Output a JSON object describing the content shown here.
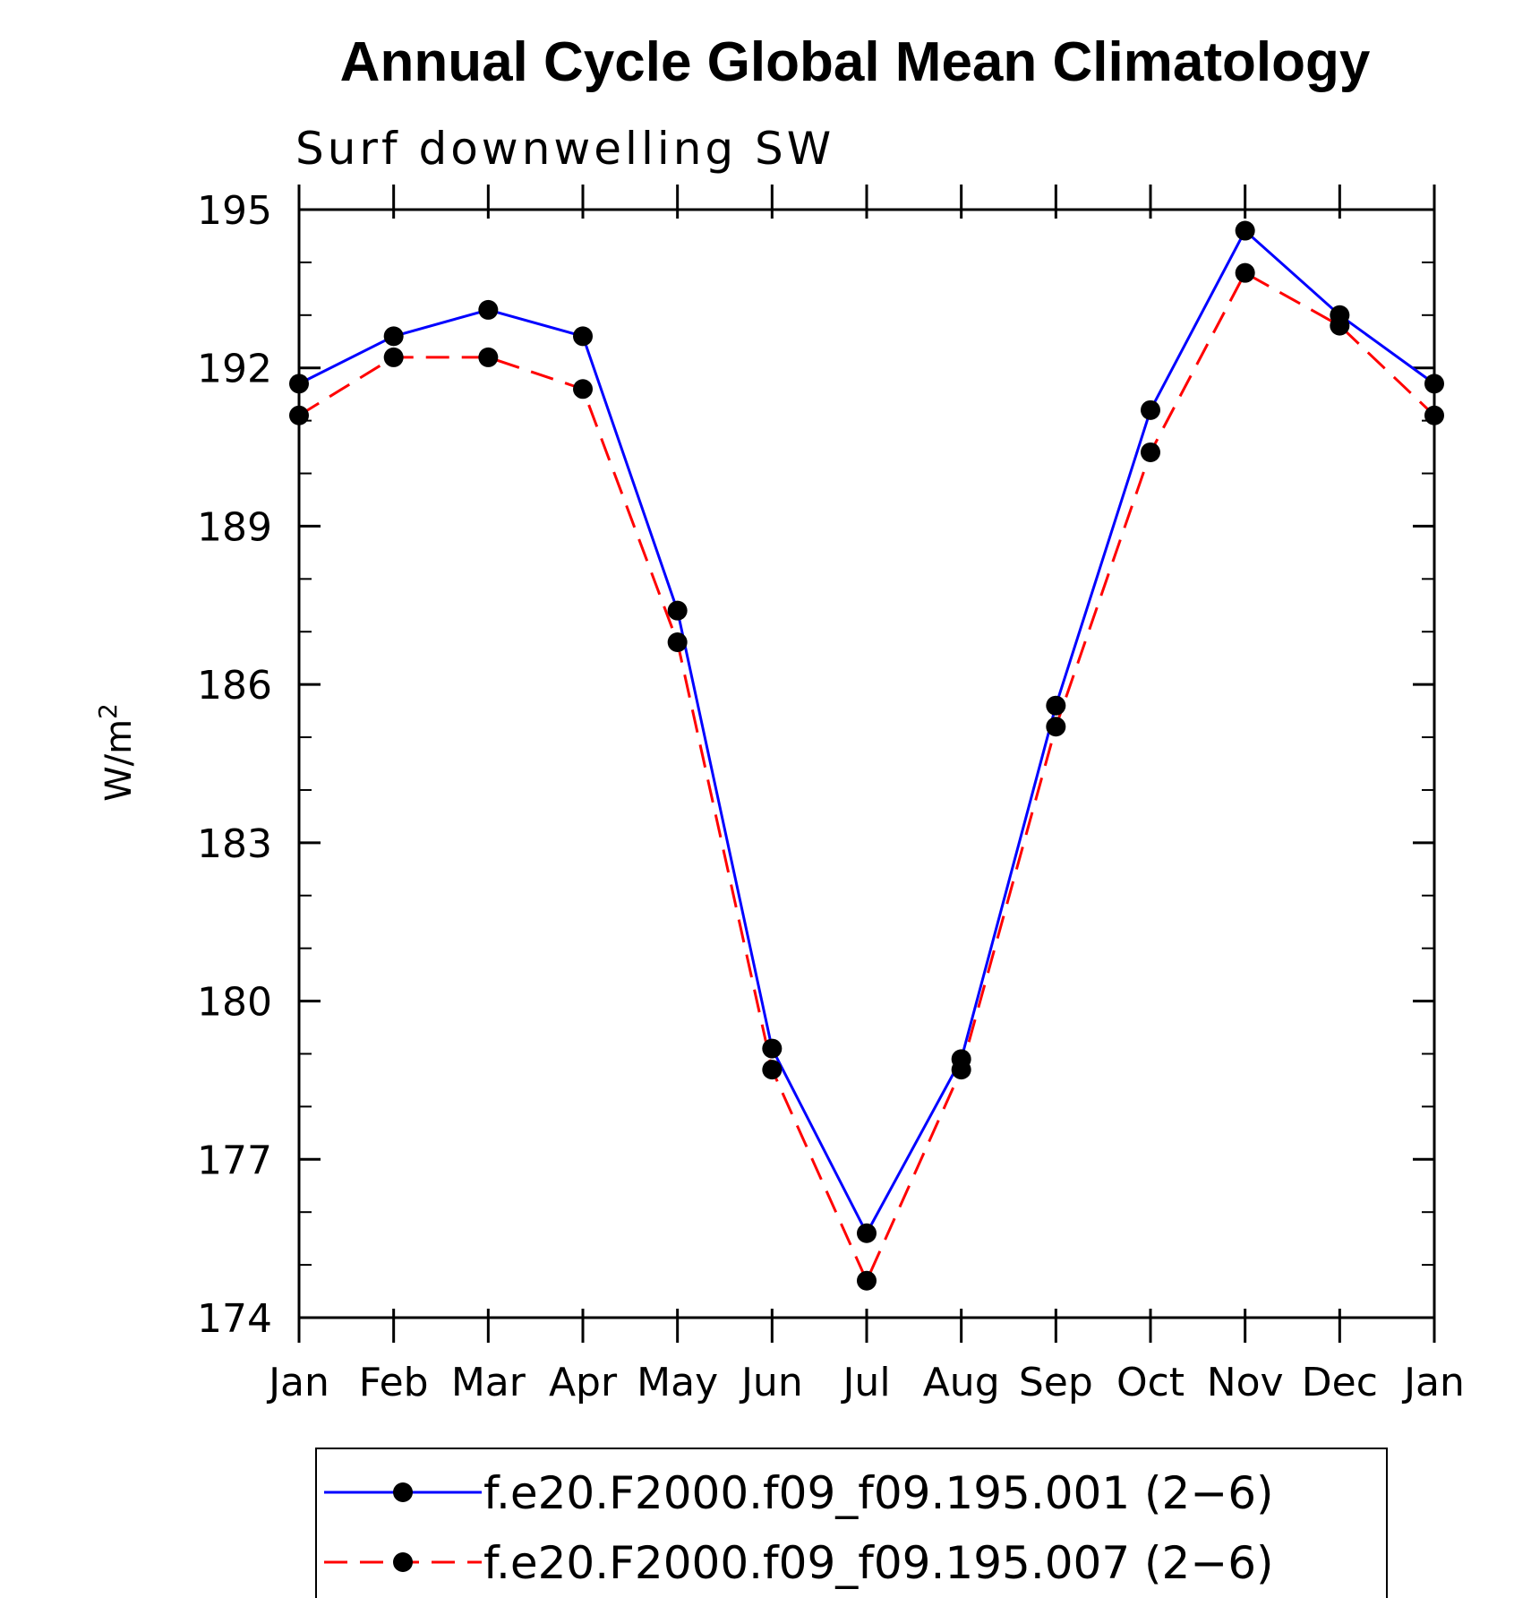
{
  "chart_data": {
    "type": "line",
    "title": "Annual Cycle Global Mean Climatology",
    "subtitle": "Surf downwelling SW",
    "ylabel": "W/m",
    "ylabel_superscript": "2",
    "ylim": [
      174,
      195
    ],
    "yticks": [
      "195",
      "192",
      "189",
      "186",
      "183",
      "180",
      "177",
      "174"
    ],
    "categories": [
      "Jan",
      "Feb",
      "Mar",
      "Apr",
      "May",
      "Jun",
      "Jul",
      "Aug",
      "Sep",
      "Oct",
      "Nov",
      "Dec",
      "Jan"
    ],
    "series": [
      {
        "name": "f.e20.F2000.f09_f09.195.001 (2−6)",
        "color": "#0000ff",
        "dash": "solid",
        "values": [
          191.7,
          192.6,
          193.1,
          192.6,
          187.4,
          179.1,
          175.6,
          178.9,
          185.6,
          191.2,
          194.6,
          193.0,
          191.7
        ]
      },
      {
        "name": "f.e20.F2000.f09_f09.195.007 (2−6)",
        "color": "#ff0000",
        "dash": "dashed",
        "values": [
          191.1,
          192.2,
          192.2,
          191.6,
          186.8,
          178.7,
          174.7,
          178.7,
          185.2,
          190.4,
          193.8,
          192.8,
          191.1
        ]
      }
    ],
    "grid": false,
    "legend": "bottom"
  }
}
